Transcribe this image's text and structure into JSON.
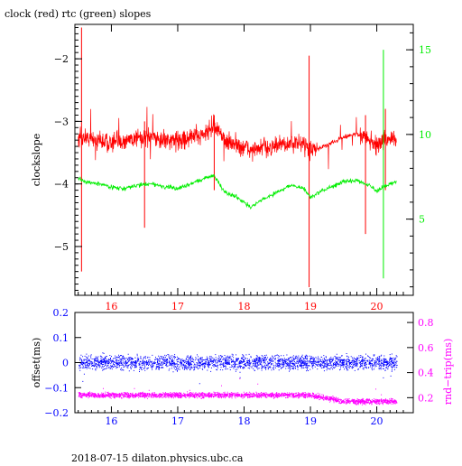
{
  "title": "clock (red) rtc (green) slopes",
  "footer": "2018-07-15 dilaton.physics.ubc.ca",
  "colors": {
    "clock": "#ff0000",
    "rtc": "#00ee00",
    "offset": "#0000ff",
    "rndtrip": "#ff00ff",
    "axis": "#000000"
  },
  "chart_data": [
    {
      "type": "line",
      "title": "clock (red) rtc (green) slopes",
      "ylabel": "clockslope",
      "xlim": [
        15.45,
        20.55
      ],
      "ylim": [
        -5.78,
        -1.45
      ],
      "xticks": [
        16,
        17,
        18,
        19,
        20
      ],
      "yticks": [
        -5,
        -4,
        -3,
        -2
      ],
      "y2lim": [
        0.5,
        16.5
      ],
      "y2ticks": [
        5,
        10,
        15
      ],
      "series": [
        {
          "name": "clock",
          "axis": "left",
          "x": [
            15.5,
            15.6,
            15.8,
            16.0,
            16.2,
            16.4,
            16.6,
            16.8,
            17.0,
            17.2,
            17.4,
            17.55,
            17.7,
            17.9,
            18.1,
            18.3,
            18.5,
            18.7,
            18.9,
            19.0,
            19.1,
            19.3,
            19.5,
            19.7,
            19.9,
            20.0,
            20.1,
            20.2,
            20.3
          ],
          "y": [
            -3.3,
            -3.25,
            -3.3,
            -3.35,
            -3.3,
            -3.25,
            -3.28,
            -3.3,
            -3.3,
            -3.25,
            -3.2,
            -3.05,
            -3.3,
            -3.4,
            -3.45,
            -3.42,
            -3.4,
            -3.35,
            -3.35,
            -3.45,
            -3.45,
            -3.35,
            -3.25,
            -3.2,
            -3.3,
            -3.4,
            -3.3,
            -3.25,
            -3.3
          ],
          "spikes": [
            {
              "x": 15.55,
              "y": [
                -5.4,
                -1.5
              ]
            },
            {
              "x": 16.5,
              "y": [
                -4.7,
                -3.0
              ]
            },
            {
              "x": 18.98,
              "y": [
                -5.65,
                -1.95
              ]
            },
            {
              "x": 19.83,
              "y": [
                -4.8,
                -2.9
              ]
            },
            {
              "x": 20.13,
              "y": [
                -4.1,
                -2.8
              ]
            },
            {
              "x": 17.55,
              "y": [
                -4.1,
                -2.9
              ]
            }
          ]
        },
        {
          "name": "rtc",
          "axis": "right",
          "x": [
            15.5,
            15.6,
            15.8,
            16.0,
            16.2,
            16.4,
            16.6,
            16.8,
            17.0,
            17.2,
            17.4,
            17.55,
            17.7,
            17.9,
            18.1,
            18.3,
            18.5,
            18.7,
            18.9,
            19.0,
            19.1,
            19.3,
            19.5,
            19.7,
            19.9,
            20.0,
            20.1,
            20.2,
            20.3
          ],
          "y": [
            7.4,
            7.2,
            7.1,
            6.9,
            6.8,
            7.0,
            7.1,
            6.9,
            6.8,
            7.1,
            7.4,
            7.6,
            6.6,
            6.3,
            5.7,
            6.2,
            6.6,
            7.0,
            6.8,
            6.3,
            6.5,
            6.9,
            7.2,
            7.3,
            7.0,
            6.6,
            6.9,
            7.1,
            7.2
          ],
          "spikes": [
            {
              "x": 20.1,
              "y": [
                1.5,
                15.0
              ]
            }
          ]
        }
      ]
    },
    {
      "type": "scatter",
      "ylabel": "offset(ms)",
      "y2label": "rnd−trip(ms)",
      "xlim": [
        15.45,
        20.55
      ],
      "ylim": [
        -0.2,
        0.2
      ],
      "xticks": [
        16,
        17,
        18,
        19,
        20
      ],
      "yticks": [
        -0.2,
        -0.1,
        0,
        0.1,
        0.2
      ],
      "y2lim": [
        0.08,
        0.88
      ],
      "y2ticks": [
        0.2,
        0.4,
        0.6,
        0.8
      ],
      "series": [
        {
          "name": "offset",
          "axis": "left",
          "x": [
            15.5,
            16.5,
            17.5,
            18.5,
            19.5,
            20.3
          ],
          "y": [
            0.0,
            0.0,
            0.0,
            0.0,
            0.0,
            0.0
          ],
          "spread": 0.04
        },
        {
          "name": "rnd-trip",
          "axis": "right",
          "x": [
            15.5,
            16.5,
            17.5,
            18.5,
            19.0,
            19.5,
            20.3
          ],
          "y": [
            0.22,
            0.22,
            0.22,
            0.22,
            0.22,
            0.17,
            0.17
          ],
          "spread": 0.03
        }
      ]
    }
  ]
}
